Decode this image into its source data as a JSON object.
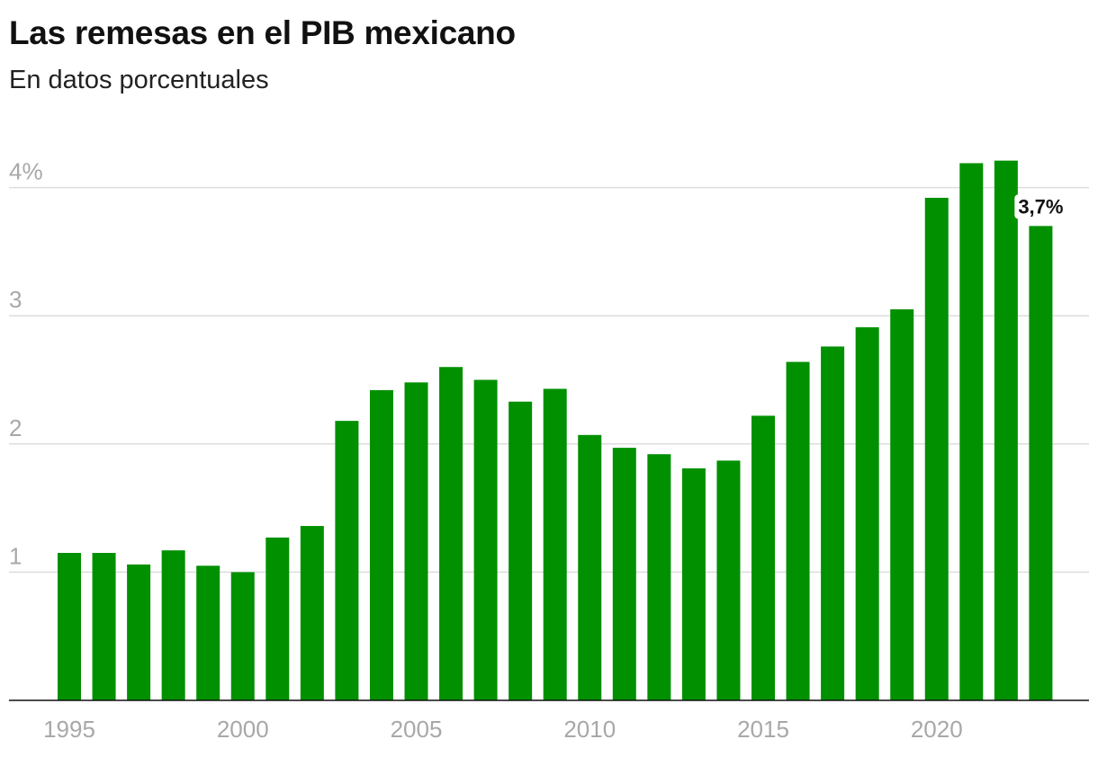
{
  "title": "Las remesas en el PIB mexicano",
  "subtitle": "En datos porcentuales",
  "colors": {
    "bar": "#009000",
    "grid": "#dddddd",
    "axis": "#111111",
    "tick_text": "#a8a8a8"
  },
  "chart_data": {
    "type": "bar",
    "title": "Las remesas en el PIB mexicano",
    "subtitle": "En datos porcentuales",
    "xlabel": "",
    "ylabel": "",
    "ylim": [
      0,
      4.45
    ],
    "grid": true,
    "y_ticks": [
      {
        "value": 1,
        "label": "1"
      },
      {
        "value": 2,
        "label": "2"
      },
      {
        "value": 3,
        "label": "3"
      },
      {
        "value": 4,
        "label": "4%"
      }
    ],
    "x_ticks": [
      {
        "value": 1995,
        "label": "1995"
      },
      {
        "value": 2000,
        "label": "2000"
      },
      {
        "value": 2005,
        "label": "2005"
      },
      {
        "value": 2010,
        "label": "2010"
      },
      {
        "value": 2015,
        "label": "2015"
      },
      {
        "value": 2020,
        "label": "2020"
      }
    ],
    "categories": [
      1995,
      1996,
      1997,
      1998,
      1999,
      2000,
      2001,
      2002,
      2003,
      2004,
      2005,
      2006,
      2007,
      2008,
      2009,
      2010,
      2011,
      2012,
      2013,
      2014,
      2015,
      2016,
      2017,
      2018,
      2019,
      2020,
      2021,
      2022,
      2023
    ],
    "values": [
      1.15,
      1.15,
      1.06,
      1.17,
      1.05,
      1.0,
      1.27,
      1.36,
      2.18,
      2.42,
      2.48,
      2.6,
      2.5,
      2.33,
      2.43,
      2.07,
      1.97,
      1.92,
      1.81,
      1.87,
      2.22,
      2.64,
      2.76,
      2.91,
      3.05,
      3.92,
      4.19,
      4.21,
      3.7
    ],
    "annotations": [
      {
        "category": 2023,
        "label": "3,7%"
      }
    ]
  }
}
